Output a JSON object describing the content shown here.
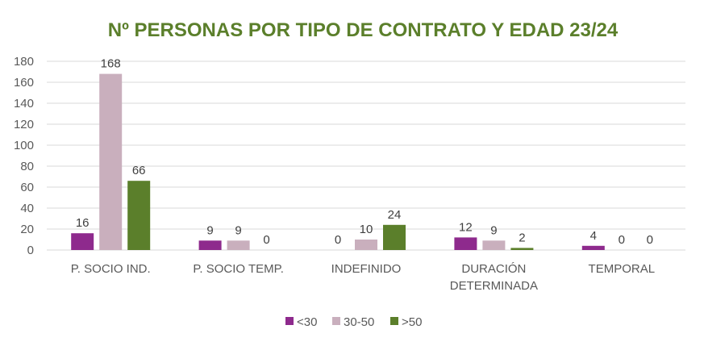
{
  "chart_data": {
    "type": "bar",
    "title": "Nº PERSONAS POR TIPO DE CONTRATO Y EDAD 23/24",
    "title_color": "#5b7f2b",
    "categories": [
      [
        "P. SOCIO IND."
      ],
      [
        "P. SOCIO TEMP."
      ],
      [
        "INDEFINIDO"
      ],
      [
        "DURACIÓN",
        "DETERMINADA"
      ],
      [
        "TEMPORAL"
      ]
    ],
    "series": [
      {
        "name": "<30",
        "color": "#8e2a8d",
        "values": [
          16,
          9,
          0,
          12,
          4
        ]
      },
      {
        "name": "30-50",
        "color": "#c9afbd",
        "values": [
          168,
          9,
          10,
          9,
          0
        ]
      },
      {
        "name": ">50",
        "color": "#5b7f2b",
        "values": [
          66,
          0,
          24,
          2,
          0
        ]
      }
    ],
    "ylim": [
      0,
      180
    ],
    "yticks": [
      0,
      20,
      40,
      60,
      80,
      100,
      120,
      140,
      160,
      180
    ],
    "grid": true,
    "legend": "bottom",
    "xlabel": "",
    "ylabel": ""
  }
}
